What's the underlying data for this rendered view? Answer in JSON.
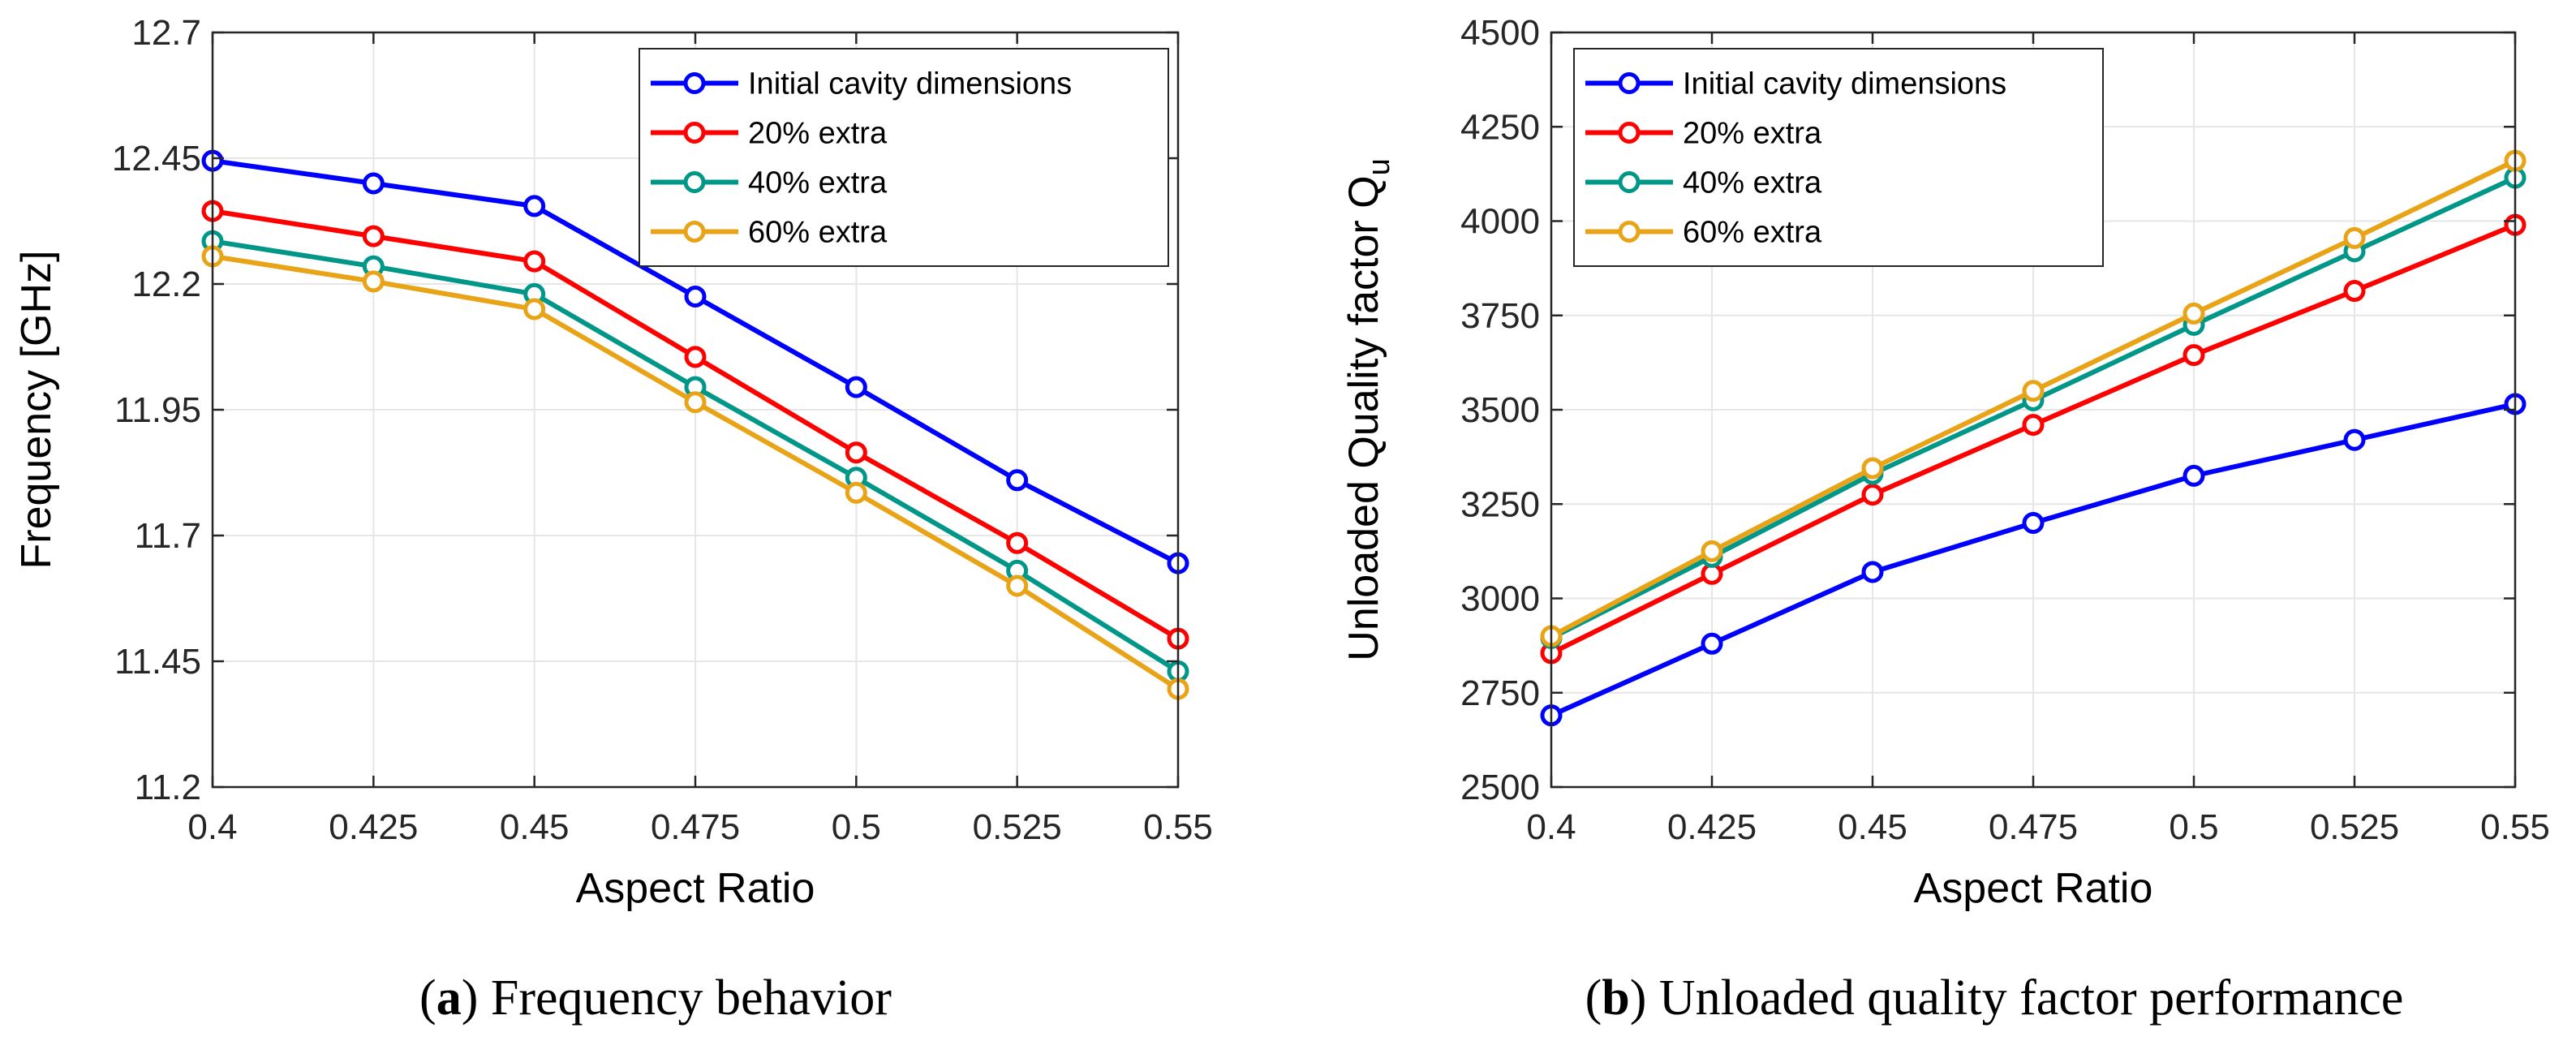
{
  "chart_data": [
    {
      "type": "line",
      "panel": "a",
      "caption_letter": "a",
      "caption_text": "Frequency behavior",
      "xlabel": "Aspect Ratio",
      "ylabel": "Frequency [GHz]",
      "x": [
        0.4,
        0.425,
        0.45,
        0.475,
        0.5,
        0.525,
        0.55
      ],
      "x_tick_labels": [
        "0.4",
        "0.425",
        "0.45",
        "0.475",
        "0.5",
        "0.525",
        "0.55"
      ],
      "xlim": [
        0.4,
        0.55
      ],
      "ylim": [
        11.2,
        12.7
      ],
      "y_ticks": [
        11.2,
        11.45,
        11.7,
        11.95,
        12.2,
        12.45,
        12.7
      ],
      "y_tick_labels": [
        "11.2",
        "11.45",
        "11.7",
        "11.95",
        "12.2",
        "12.45",
        "12.7"
      ],
      "grid": true,
      "legend_position": "top-right",
      "series": [
        {
          "name": "Initial cavity dimensions",
          "color": "#0000ff",
          "values": [
            12.445,
            12.4,
            12.355,
            12.175,
            11.995,
            11.81,
            11.645
          ]
        },
        {
          "name": "20% extra",
          "color": "#ff0000",
          "values": [
            12.345,
            12.295,
            12.245,
            12.055,
            11.865,
            11.685,
            11.495
          ]
        },
        {
          "name": "40% extra",
          "color": "#009688",
          "values": [
            12.285,
            12.235,
            12.18,
            11.995,
            11.815,
            11.63,
            11.43
          ]
        },
        {
          "name": "60% extra",
          "color": "#e8a317",
          "values": [
            12.255,
            12.205,
            12.15,
            11.965,
            11.785,
            11.6,
            11.395
          ]
        }
      ]
    },
    {
      "type": "line",
      "panel": "b",
      "caption_letter": "b",
      "caption_text": "Unloaded quality factor performance",
      "xlabel": "Aspect Ratio",
      "ylabel": "Unloaded Quality factor Q",
      "ylabel_subscript": "u",
      "x": [
        0.4,
        0.425,
        0.45,
        0.475,
        0.5,
        0.525,
        0.55
      ],
      "x_tick_labels": [
        "0.4",
        "0.425",
        "0.45",
        "0.475",
        "0.5",
        "0.525",
        "0.55"
      ],
      "xlim": [
        0.4,
        0.55
      ],
      "ylim": [
        2500,
        4500
      ],
      "y_ticks": [
        2500,
        2750,
        3000,
        3250,
        3500,
        3750,
        4000,
        4250,
        4500
      ],
      "y_tick_labels": [
        "2500",
        "2750",
        "3000",
        "3250",
        "3500",
        "3750",
        "4000",
        "4250",
        "4500"
      ],
      "grid": true,
      "legend_position": "top-left",
      "series": [
        {
          "name": "Initial cavity dimensions",
          "color": "#0000ff",
          "values": [
            2690,
            2880,
            3070,
            3200,
            3325,
            3420,
            3515
          ]
        },
        {
          "name": "20% extra",
          "color": "#ff0000",
          "values": [
            2855,
            3065,
            3275,
            3460,
            3645,
            3815,
            3990
          ]
        },
        {
          "name": "40% extra",
          "color": "#009688",
          "values": [
            2895,
            3110,
            3330,
            3525,
            3725,
            3920,
            4115
          ]
        },
        {
          "name": "60% extra",
          "color": "#e8a317",
          "values": [
            2900,
            3125,
            3345,
            3550,
            3755,
            3955,
            4160
          ]
        }
      ]
    }
  ]
}
